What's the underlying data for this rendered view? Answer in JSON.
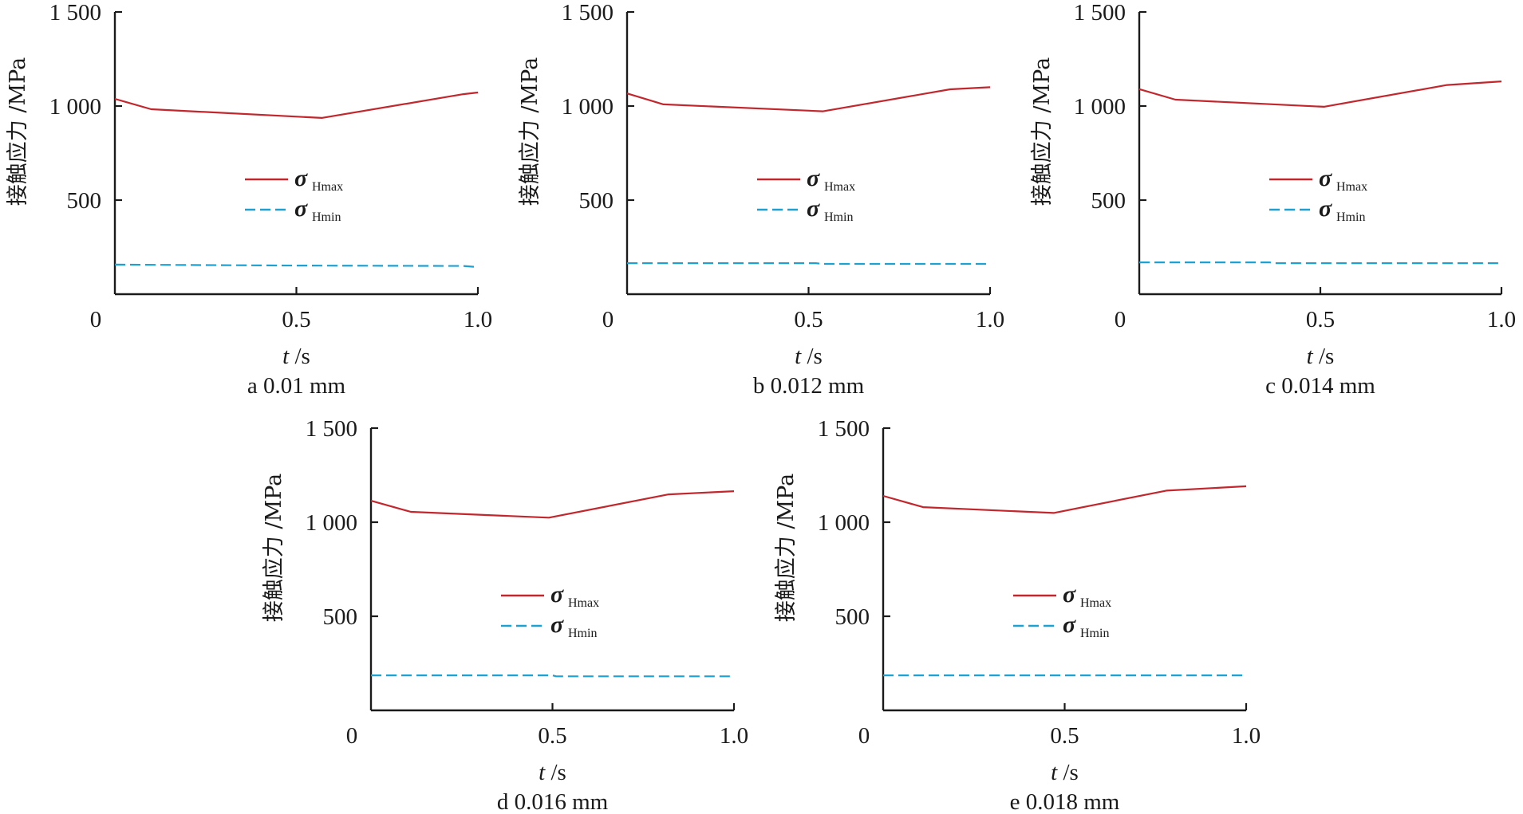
{
  "colors": {
    "hmax": "#c1272d",
    "hmin": "#1ea0d0",
    "axis": "#1a1a1a"
  },
  "chart_data": [
    {
      "type": "line",
      "caption": "a  0.01 mm",
      "xlabel_var": "t",
      "xlabel_unit": " /s",
      "ylabel": "接触应力 /MPa",
      "xlim": [
        0,
        1.0
      ],
      "ylim": [
        0,
        1500
      ],
      "xticks": [
        0,
        0.5,
        1.0
      ],
      "xtick_labels": [
        "0",
        "0.5",
        "1.0"
      ],
      "yticks": [
        500,
        1000,
        1500
      ],
      "ytick_labels": [
        "500",
        "1 000",
        "1 500"
      ],
      "legend": {
        "position": "center",
        "sigma": "σ",
        "items": [
          "Hmax",
          "Hmin"
        ]
      },
      "series": [
        {
          "name": "σHmax",
          "style": "solid",
          "x": [
            0,
            0.1,
            0.57,
            0.96,
            1.0
          ],
          "y": [
            1038,
            983,
            937,
            1063,
            1072
          ]
        },
        {
          "name": "σHmin",
          "style": "dashed",
          "x": [
            0,
            0.5,
            0.96,
            1.0
          ],
          "y": [
            157,
            152,
            150,
            144
          ]
        }
      ]
    },
    {
      "type": "line",
      "caption": "b  0.012 mm",
      "xlabel_var": "t",
      "xlabel_unit": " /s",
      "ylabel": "接触应力 /MPa",
      "xlim": [
        0,
        1.0
      ],
      "ylim": [
        0,
        1500
      ],
      "xticks": [
        0,
        0.5,
        1.0
      ],
      "xtick_labels": [
        "0",
        "0.5",
        "1.0"
      ],
      "yticks": [
        500,
        1000,
        1500
      ],
      "ytick_labels": [
        "500",
        "1 000",
        "1 500"
      ],
      "legend": {
        "position": "center",
        "sigma": "σ",
        "items": [
          "Hmax",
          "Hmin"
        ]
      },
      "series": [
        {
          "name": "σHmax",
          "style": "solid",
          "x": [
            0,
            0.1,
            0.54,
            0.89,
            1.0
          ],
          "y": [
            1067,
            1009,
            972,
            1089,
            1100
          ]
        },
        {
          "name": "σHmin",
          "style": "dashed",
          "x": [
            0,
            0.52,
            0.54,
            1.0
          ],
          "y": [
            165,
            165,
            161,
            161
          ]
        }
      ]
    },
    {
      "type": "line",
      "caption": "c  0.014 mm",
      "xlabel_var": "t",
      "xlabel_unit": " /s",
      "ylabel": "接触应力 /MPa",
      "xlim": [
        0,
        1.0
      ],
      "ylim": [
        0,
        1500
      ],
      "xticks": [
        0,
        0.5,
        1.0
      ],
      "xtick_labels": [
        "0",
        "0.5",
        "1.0"
      ],
      "yticks": [
        500,
        1000,
        1500
      ],
      "ytick_labels": [
        "500",
        "1 000",
        "1 500"
      ],
      "legend": {
        "position": "center",
        "sigma": "σ",
        "items": [
          "Hmax",
          "Hmin"
        ]
      },
      "series": [
        {
          "name": "σHmax",
          "style": "solid",
          "x": [
            0,
            0.1,
            0.51,
            0.85,
            1.0
          ],
          "y": [
            1090,
            1034,
            996,
            1112,
            1131
          ]
        },
        {
          "name": "σHmin",
          "style": "dashed",
          "x": [
            0,
            0.36,
            0.37,
            1.0
          ],
          "y": [
            169,
            169,
            165,
            165
          ]
        }
      ]
    },
    {
      "type": "line",
      "caption": "d  0.016 mm",
      "xlabel_var": "t",
      "xlabel_unit": " /s",
      "ylabel": "接触应力 /MPa",
      "xlim": [
        0,
        1.0
      ],
      "ylim": [
        0,
        1500
      ],
      "xticks": [
        0,
        0.5,
        1.0
      ],
      "xtick_labels": [
        "0",
        "0.5",
        "1.0"
      ],
      "yticks": [
        500,
        1000,
        1500
      ],
      "ytick_labels": [
        "500",
        "1 000",
        "1 500"
      ],
      "legend": {
        "position": "center",
        "sigma": "σ",
        "items": [
          "Hmax",
          "Hmin"
        ]
      },
      "series": [
        {
          "name": "σHmax",
          "style": "solid",
          "x": [
            0,
            0.11,
            0.49,
            0.82,
            1.0
          ],
          "y": [
            1114,
            1055,
            1024,
            1148,
            1165
          ]
        },
        {
          "name": "σHmin",
          "style": "dashed",
          "x": [
            0,
            0.5,
            0.51,
            1.0
          ],
          "y": [
            186,
            186,
            181,
            181
          ]
        }
      ]
    },
    {
      "type": "line",
      "caption": "e  0.018 mm",
      "xlabel_var": "t",
      "xlabel_unit": " /s",
      "ylabel": "接触应力 /MPa",
      "xlim": [
        0,
        1.0
      ],
      "ylim": [
        0,
        1500
      ],
      "xticks": [
        0,
        0.5,
        1.0
      ],
      "xtick_labels": [
        "0",
        "0.5",
        "1.0"
      ],
      "yticks": [
        500,
        1000,
        1500
      ],
      "ytick_labels": [
        "500",
        "1 000",
        "1 500"
      ],
      "legend": {
        "position": "center",
        "sigma": "σ",
        "items": [
          "Hmax",
          "Hmin"
        ]
      },
      "series": [
        {
          "name": "σHmax",
          "style": "solid",
          "x": [
            0,
            0.11,
            0.47,
            0.78,
            1.0
          ],
          "y": [
            1140,
            1080,
            1049,
            1168,
            1191
          ]
        },
        {
          "name": "σHmin",
          "style": "dashed",
          "x": [
            0,
            1.0
          ],
          "y": [
            186,
            186
          ]
        }
      ]
    }
  ]
}
